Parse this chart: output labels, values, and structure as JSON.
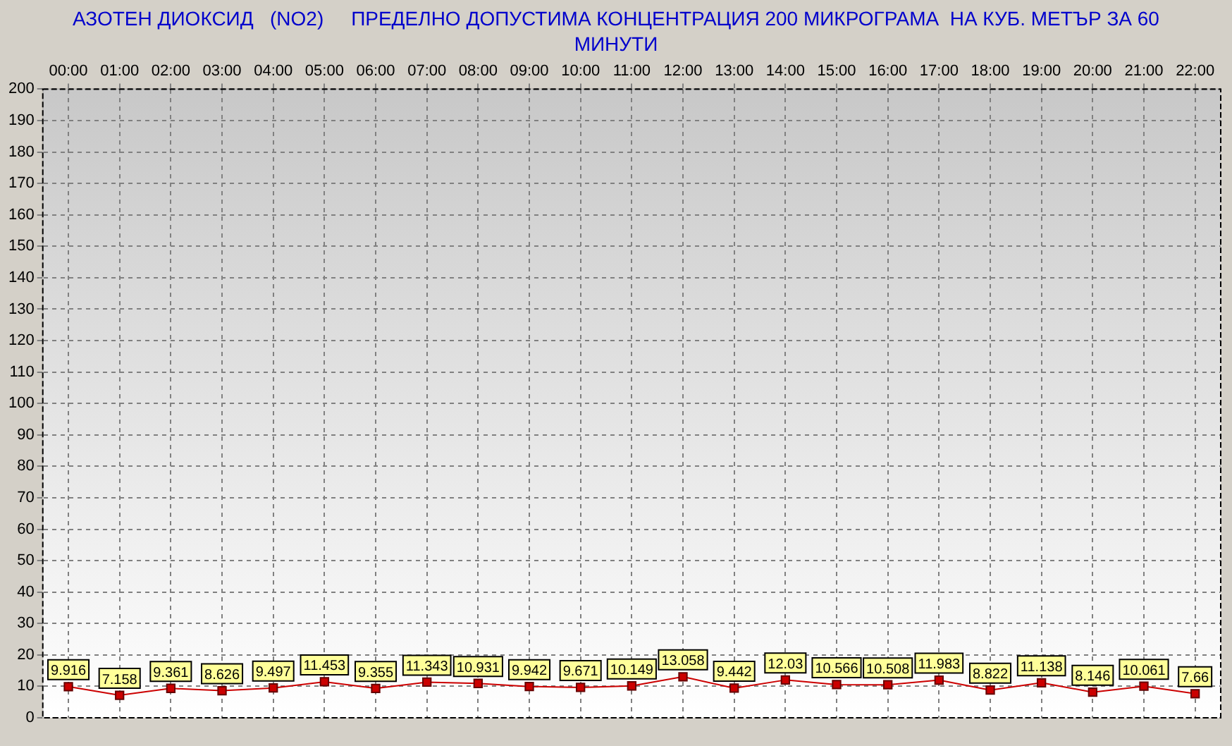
{
  "chart_data": {
    "type": "line",
    "title": "АЗОТЕН ДИОКСИД   (NO2)     ПРЕДЕЛНО ДОПУСТИМА КОНЦЕНТРАЦИЯ 200 МИКРОГРАМА  НА КУБ. МЕТЪР ЗА 60 МИНУТИ",
    "categories": [
      "00:00",
      "01:00",
      "02:00",
      "03:00",
      "04:00",
      "05:00",
      "06:00",
      "07:00",
      "08:00",
      "09:00",
      "10:00",
      "11:00",
      "12:00",
      "13:00",
      "14:00",
      "15:00",
      "16:00",
      "17:00",
      "18:00",
      "19:00",
      "20:00",
      "21:00",
      "22:00"
    ],
    "series": [
      {
        "color": "#cc0000",
        "values": [
          9.916,
          7.158,
          9.361,
          8.626,
          9.497,
          11.453,
          9.355,
          11.343,
          10.931,
          9.942,
          9.671,
          10.149,
          13.058,
          9.442,
          12.03,
          10.566,
          10.508,
          11.983,
          8.822,
          11.138,
          8.146,
          10.061,
          7.66
        ]
      }
    ],
    "ylim": [
      0,
      200
    ],
    "yticks": [
      0,
      10,
      20,
      30,
      40,
      50,
      60,
      70,
      80,
      90,
      100,
      110,
      120,
      130,
      140,
      150,
      160,
      170,
      180,
      190,
      200
    ],
    "grid": true,
    "legend": false,
    "marker": "square",
    "line_style": "solid",
    "data_labels": true
  }
}
